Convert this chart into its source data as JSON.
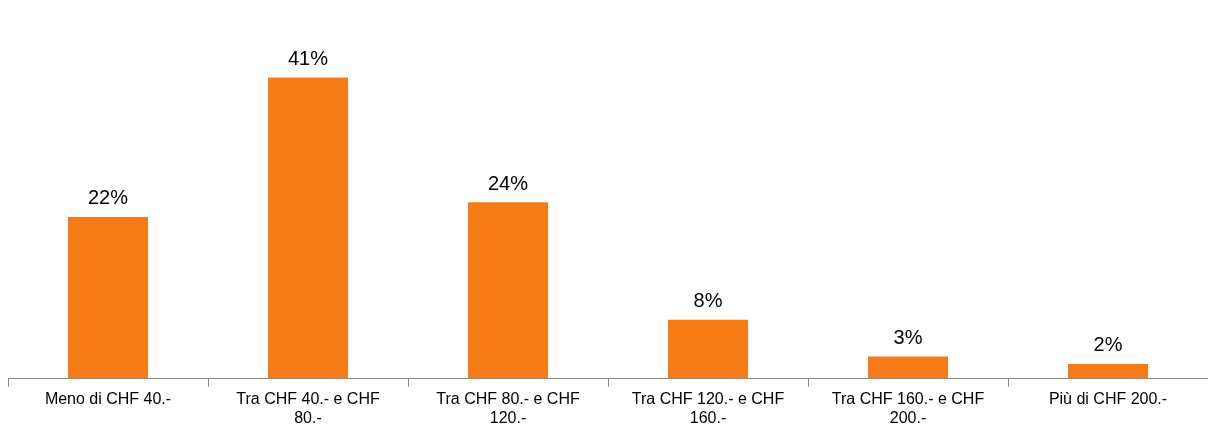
{
  "chart_data": {
    "type": "bar",
    "categories": [
      "Meno di CHF 40.-",
      "Tra CHF 40.- e CHF 80.-",
      "Tra CHF 80.- e CHF 120.-",
      "Tra CHF 120.- e CHF 160.-",
      "Tra CHF 160.- e CHF 200.-",
      "Più di CHF 200.-"
    ],
    "values": [
      22,
      41,
      24,
      8,
      3,
      2
    ],
    "value_labels": [
      "22%",
      "41%",
      "24%",
      "8%",
      "3%",
      "2%"
    ],
    "color": "#f47b16",
    "grid": false,
    "legend": false
  }
}
